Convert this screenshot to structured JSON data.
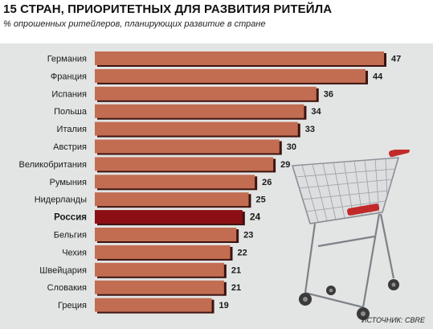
{
  "header": {
    "title": "15 СТРАН, ПРИОРИТЕТНЫХ ДЛЯ РАЗВИТИЯ РИТЕЙЛА",
    "subtitle": "% опрошенных ритейлеров, планирующих развитие в стране"
  },
  "source": "ИСТОЧНИК: CBRE",
  "colors": {
    "bar": "#c26d52",
    "bar_highlight": "#8c0f16",
    "bar_shadow": "#3c1410",
    "plot_background": "#e3e4e4"
  },
  "illustration": "shopping-cart-icon",
  "chart_data": {
    "type": "bar",
    "orientation": "horizontal",
    "title": "15 СТРАН, ПРИОРИТЕТНЫХ ДЛЯ РАЗВИТИЯ РИТЕЙЛА",
    "subtitle": "% опрошенных ритейлеров, планирующих развитие в стране",
    "categories": [
      "Германия",
      "Франция",
      "Испания",
      "Польша",
      "Италия",
      "Австрия",
      "Великобритания",
      "Румыния",
      "Нидерланды",
      "Россия",
      "Бельгия",
      "Чехия",
      "Швейцария",
      "Словакия",
      "Греция"
    ],
    "values": [
      47,
      44,
      36,
      34,
      33,
      30,
      29,
      26,
      25,
      24,
      23,
      22,
      21,
      21,
      19
    ],
    "highlight": "Россия",
    "xlim": [
      0,
      47
    ],
    "grid": false,
    "legend": "none",
    "xlabel": "",
    "ylabel": ""
  }
}
